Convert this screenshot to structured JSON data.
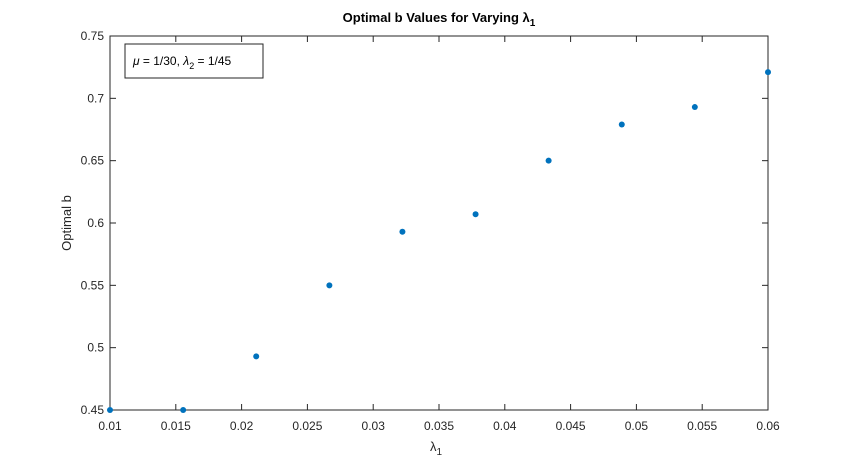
{
  "chart_data": {
    "type": "scatter",
    "title": "Optimal b Values for Varying λ",
    "title_subscript": "1",
    "xlabel": "λ",
    "xlabel_subscript": "1",
    "ylabel": "Optimal b",
    "xlim": [
      0.01,
      0.06
    ],
    "ylim": [
      0.45,
      0.75
    ],
    "xticks": [
      "0.01",
      "0.015",
      "0.02",
      "0.025",
      "0.03",
      "0.035",
      "0.04",
      "0.045",
      "0.05",
      "0.055",
      "0.06"
    ],
    "yticks": [
      "0.45",
      "0.5",
      "0.55",
      "0.6",
      "0.65",
      "0.7",
      "0.75"
    ],
    "grid": false,
    "annotation": {
      "mu_symbol": "μ",
      "mu_value": " = 1/30, ",
      "lambda_symbol": "λ",
      "lambda_subscript": "2",
      "lambda_value": " = 1/45",
      "placement": "top-left"
    },
    "series": [
      {
        "color": "#0072BD",
        "marker": "dot",
        "x": [
          0.01,
          0.01556,
          0.02111,
          0.02667,
          0.03222,
          0.03778,
          0.04333,
          0.04889,
          0.05444,
          0.06
        ],
        "y": [
          0.45,
          0.45,
          0.493,
          0.55,
          0.593,
          0.607,
          0.65,
          0.679,
          0.693,
          0.721
        ]
      }
    ]
  }
}
